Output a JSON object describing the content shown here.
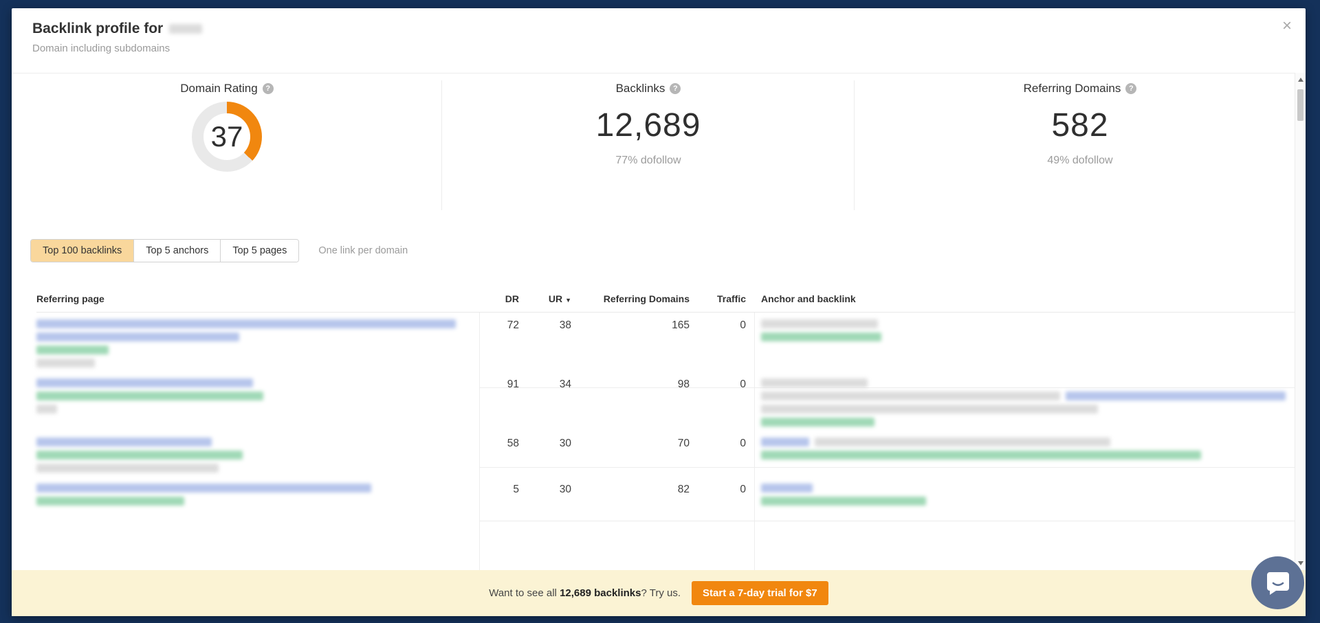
{
  "colors": {
    "navy_bg": "#14315a",
    "accent_orange": "#f1870f",
    "gauge_track": "#e9e9e9",
    "tab_active_bg": "#f9d79c",
    "banner_bg": "#fbf3d4",
    "chat_bubble": "#5d7195",
    "redaction": {
      "blue": "#a9bbe8",
      "green": "#8fd2a9",
      "gray": "#d6d6d6"
    }
  },
  "icons": {
    "close": "×",
    "help": "?",
    "sort_desc": "▼"
  },
  "modal": {
    "title": "Backlink profile for",
    "subtitle": "Domain including subdomains"
  },
  "stats": {
    "domain_rating": {
      "label": "Domain Rating",
      "value": "37",
      "gauge_percent": 37
    },
    "backlinks": {
      "label": "Backlinks",
      "value": "12,689",
      "sub": "77% dofollow"
    },
    "referring_domains": {
      "label": "Referring Domains",
      "value": "582",
      "sub": "49% dofollow"
    }
  },
  "tabs": {
    "items": [
      {
        "id": "top-100-backlinks",
        "label": "Top 100 backlinks",
        "active": true
      },
      {
        "id": "top-5-anchors",
        "label": "Top 5 anchors",
        "active": false
      },
      {
        "id": "top-5-pages",
        "label": "Top 5 pages",
        "active": false
      }
    ],
    "note": "One link per domain"
  },
  "table": {
    "headers": {
      "referring_page": "Referring page",
      "dr": "DR",
      "ur": "UR",
      "referring_domains": "Referring Domains",
      "traffic": "Traffic",
      "anchor": "Anchor and backlink"
    },
    "sorted_by": "UR",
    "rows": [
      {
        "dr": "72",
        "ur": "38",
        "referring_domains": "165",
        "traffic": "0",
        "page_redaction": [
          [
            [
              "blue",
              610
            ]
          ],
          [
            [
              "blue",
              295
            ]
          ],
          [
            [
              "green",
              105
            ]
          ],
          [
            [
              "gray",
              85
            ]
          ]
        ],
        "anchor_redaction": [
          [
            [
              "gray",
              170
            ]
          ],
          [
            [
              "green",
              175
            ]
          ]
        ]
      },
      {
        "dr": "91",
        "ur": "34",
        "referring_domains": "98",
        "traffic": "0",
        "page_redaction": [
          [
            [
              "blue",
              315
            ]
          ],
          [
            [
              "green",
              330
            ]
          ],
          [
            [
              "gray",
              30
            ]
          ]
        ],
        "anchor_redaction": [
          [
            [
              "gray",
              155
            ]
          ],
          [
            [
              "gray",
              435
            ],
            [
              "blue",
              320
            ]
          ],
          [
            [
              "gray",
              490
            ]
          ],
          [
            [
              "green",
              165
            ]
          ]
        ]
      },
      {
        "dr": "58",
        "ur": "30",
        "referring_domains": "70",
        "traffic": "0",
        "page_redaction": [
          [
            [
              "blue",
              255
            ]
          ],
          [
            [
              "green",
              300
            ]
          ],
          [
            [
              "gray",
              265
            ]
          ]
        ],
        "anchor_redaction": [
          [
            [
              "blue",
              70
            ],
            [
              "gray",
              430
            ]
          ],
          [
            [
              "green",
              640
            ]
          ]
        ]
      },
      {
        "dr": "5",
        "ur": "30",
        "referring_domains": "82",
        "traffic": "0",
        "page_redaction": [
          [
            [
              "blue",
              487
            ]
          ],
          [
            [
              "green",
              215
            ]
          ]
        ],
        "anchor_redaction": [
          [
            [
              "blue",
              75
            ]
          ],
          [
            [
              "green",
              240
            ]
          ]
        ]
      }
    ]
  },
  "banner": {
    "text_prefix": "Want to see all ",
    "text_bold": "12,689 backlinks",
    "text_suffix": "? Try us.",
    "button_label": "Start a 7-day trial for $7"
  }
}
